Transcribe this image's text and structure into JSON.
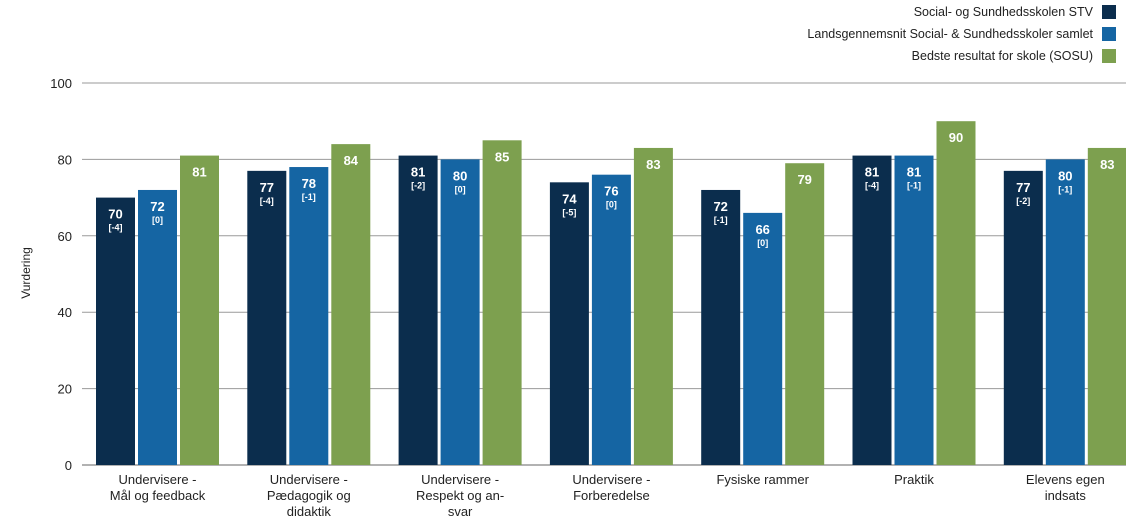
{
  "chart_data": {
    "type": "bar",
    "ylabel": "Vurdering",
    "ylim": [
      0,
      100
    ],
    "yticks": [
      0,
      20,
      40,
      60,
      80,
      100
    ],
    "grid": true,
    "legend_position": "top-right",
    "categories": [
      [
        "Undervisere -",
        "Mål og feedback"
      ],
      [
        "Undervisere -",
        "Pædagogik og",
        "didaktik"
      ],
      [
        "Undervisere -",
        "Respekt og an-",
        "svar"
      ],
      [
        "Undervisere -",
        "Forberedelse"
      ],
      [
        "Fysiske rammer"
      ],
      [
        "Praktik"
      ],
      [
        "Elevens egen",
        "indsats"
      ]
    ],
    "series": [
      {
        "name": "Social- og Sundhedsskolen STV",
        "color": "#0b2d4d",
        "values": [
          70,
          77,
          81,
          74,
          72,
          81,
          77
        ],
        "diffs": [
          "[-4]",
          "[-4]",
          "[-2]",
          "[-5]",
          "[-1]",
          "[-4]",
          "[-2]"
        ]
      },
      {
        "name": "Landsgennemsnit Social- & Sundhedsskoler samlet",
        "color": "#1565a3",
        "values": [
          72,
          78,
          80,
          76,
          66,
          81,
          80
        ],
        "diffs": [
          "[0]",
          "[-1]",
          "[0]",
          "[0]",
          "[0]",
          "[-1]",
          "[-1]"
        ]
      },
      {
        "name": "Bedste resultat for skole (SOSU)",
        "color": "#7da04f",
        "values": [
          81,
          84,
          85,
          83,
          79,
          90,
          83
        ],
        "diffs": []
      }
    ]
  }
}
